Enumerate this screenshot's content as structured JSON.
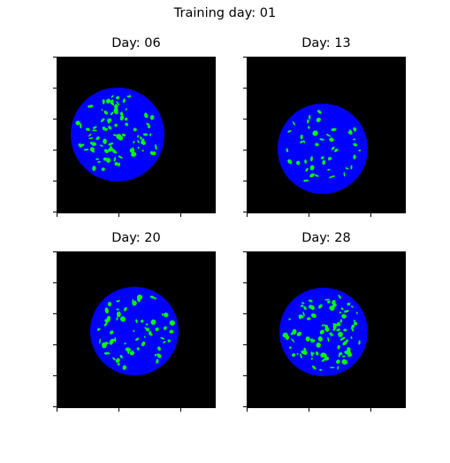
{
  "figure": {
    "suptitle": "Training day: 01"
  },
  "colors": {
    "background": "#000000",
    "disc": "#0000ff",
    "spots": "#00ff00"
  },
  "panels": [
    {
      "title": "Day: 06",
      "spot_density": "high"
    },
    {
      "title": "Day: 13",
      "spot_density": "low"
    },
    {
      "title": "Day: 20",
      "spot_density": "medium"
    },
    {
      "title": "Day: 28",
      "spot_density": "high"
    }
  ]
}
